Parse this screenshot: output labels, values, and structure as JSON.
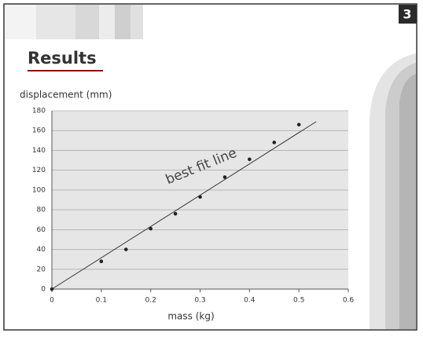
{
  "slide": {
    "number": "3",
    "heading": "Results"
  },
  "chart_data": {
    "type": "scatter",
    "x_label": "mass (kg)",
    "y_label": "displacement (mm)",
    "x": [
      0,
      0.1,
      0.15,
      0.2,
      0.25,
      0.3,
      0.35,
      0.4,
      0.45,
      0.5
    ],
    "values": [
      0,
      28,
      40,
      61,
      76,
      93,
      113,
      131,
      148,
      166
    ],
    "color": "#222222",
    "best_fit": {
      "label": "best fit line",
      "x": [
        0,
        0.535
      ],
      "y": [
        0,
        169
      ],
      "color": "#333333"
    },
    "xlim": [
      0,
      0.6
    ],
    "xticks": [
      0,
      0.1,
      0.2,
      0.3,
      0.4,
      0.5,
      0.6
    ],
    "ylim": [
      0,
      180
    ],
    "yticks": [
      0,
      20,
      40,
      60,
      80,
      100,
      120,
      140,
      160,
      180
    ],
    "grid": true
  }
}
